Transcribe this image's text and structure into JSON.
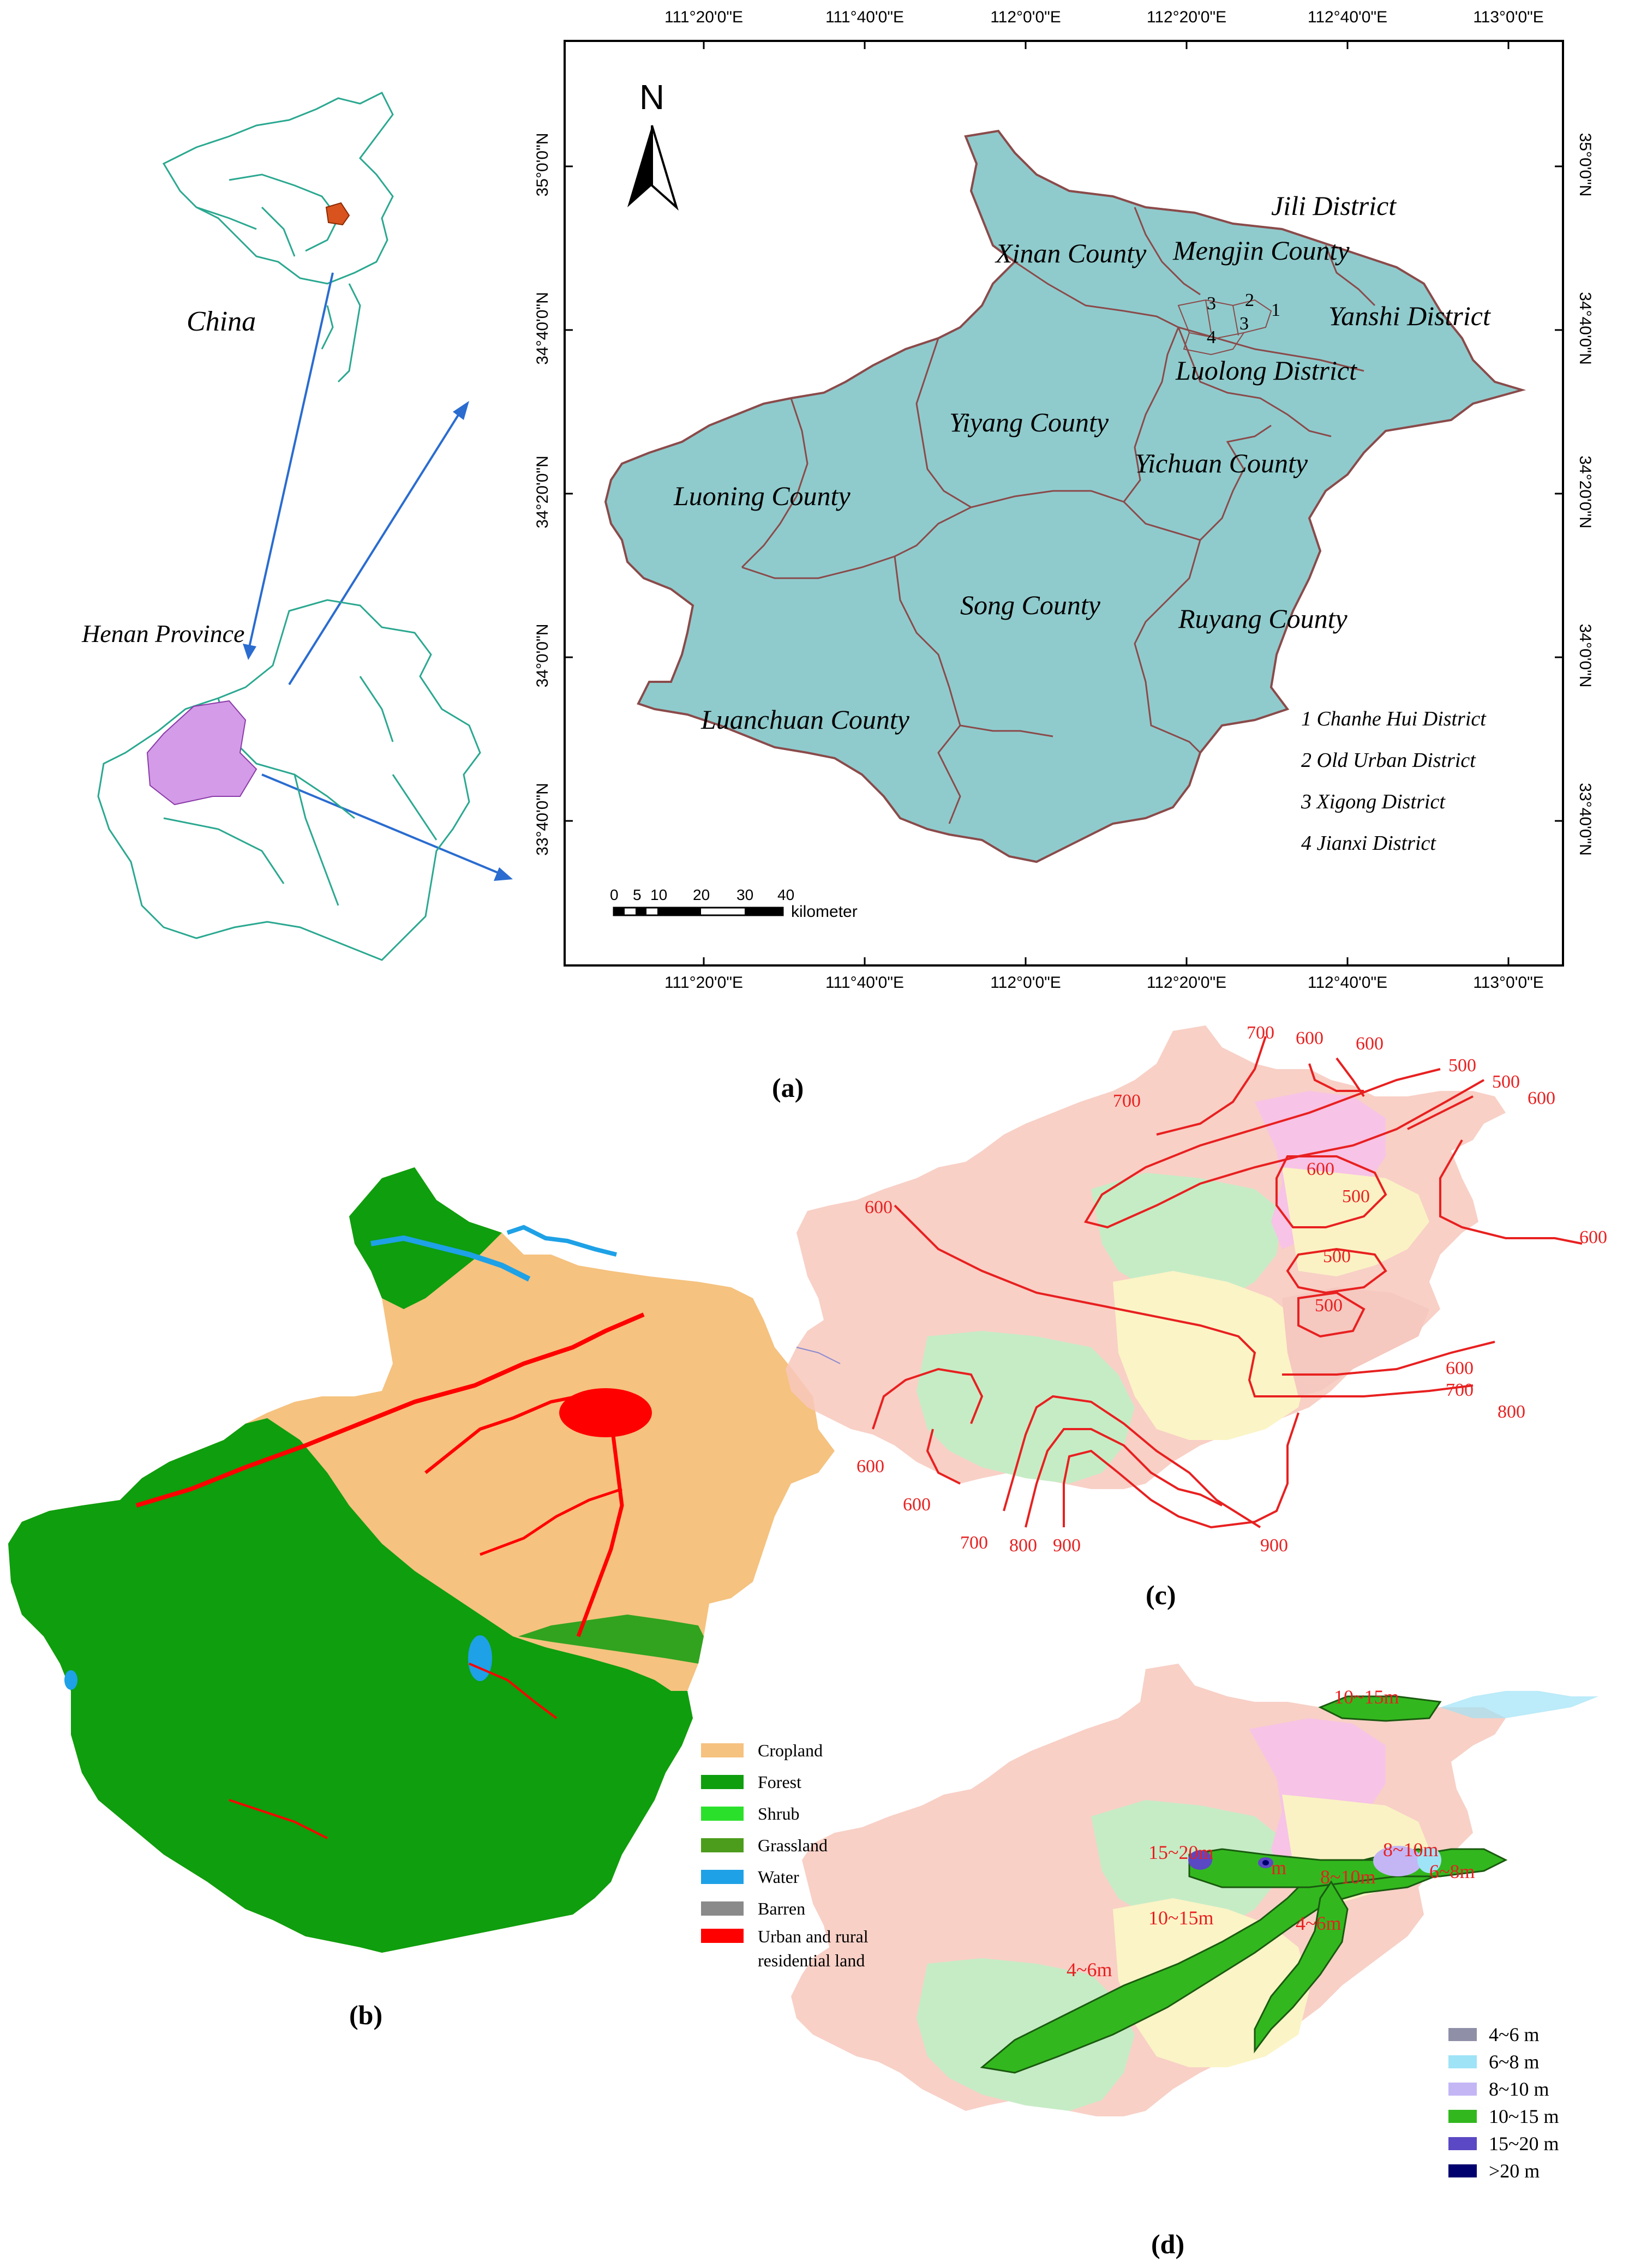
{
  "panel_a": {
    "label": "(a)",
    "inset_china": "China",
    "inset_henan": "Henan Province",
    "north_arrow": "N",
    "top_lon_ticks": [
      "111°20'0\"E",
      "111°40'0\"E",
      "112°0'0\"E",
      "112°20'0\"E",
      "112°40'0\"E",
      "113°0'0\"E"
    ],
    "bottom_lon_ticks": [
      "111°20'0\"E",
      "111°40'0\"E",
      "112°0'0\"E",
      "112°20'0\"E",
      "112°40'0\"E",
      "113°0'0\"E"
    ],
    "lat_ticks": [
      "35°0'0\"N",
      "34°40'0\"N",
      "34°20'0\"N",
      "34°0'0\"N",
      "33°40'0\"N"
    ],
    "counties": {
      "jili": "Jili District",
      "xinan": "Xinan County",
      "mengjin": "Mengjin County",
      "yanshi": "Yanshi District",
      "luolong": "Luolong District",
      "yiyang": "Yiyang County",
      "yichuan": "Yichuan County",
      "luoning": "Luoning County",
      "song": "Song County",
      "ruyang": "Ruyang County",
      "luanchuan": "Luanchuan County"
    },
    "small_numbers": [
      "3",
      "2",
      "1",
      "4",
      "3"
    ],
    "district_key": [
      "1 Chanhe Hui District",
      "2 Old Urban District",
      "3 Xigong District",
      "4 Jianxi District"
    ],
    "scale_ticks": [
      "0",
      "5",
      "10",
      "20",
      "30",
      "40"
    ],
    "scale_unit": "kilometer",
    "colors": {
      "county_fill": "#8fcbcd",
      "county_border": "#8b4a4a",
      "henan_highlight": "#d49be8",
      "china_highlight": "#d9531e"
    }
  },
  "panel_b": {
    "label": "(b)",
    "legend": [
      {
        "name": "Cropland",
        "color": "#f5c27f"
      },
      {
        "name": "Forest",
        "color": "#0e9e0e"
      },
      {
        "name": "Shrub",
        "color": "#2be02b"
      },
      {
        "name": "Grassland",
        "color": "#4c9d1c"
      },
      {
        "name": "Water",
        "color": "#1ea1e6"
      },
      {
        "name": "Barren",
        "color": "#8a8a8a"
      },
      {
        "name": "Urban and rural residential land",
        "color": "#ff0000"
      }
    ]
  },
  "panel_c": {
    "label": "(c)",
    "contour_labels": [
      "700",
      "600",
      "600",
      "500",
      "500",
      "600",
      "700",
      "600",
      "600",
      "500",
      "600",
      "500",
      "500",
      "600",
      "700",
      "800",
      "600",
      "600",
      "700",
      "800",
      "900",
      "900"
    ]
  },
  "panel_d": {
    "label": "(d)",
    "zone_labels": [
      "10~15m",
      "15~20m",
      "8~10m",
      "6~8m",
      "8~10m",
      "10~15m",
      "4~6m",
      "4~6m",
      "m"
    ],
    "legend": [
      {
        "name": "4~6 m",
        "color": "#8f8fa8"
      },
      {
        "name": "6~8 m",
        "color": "#9fe3f7"
      },
      {
        "name": "8~10 m",
        "color": "#c4b6f5"
      },
      {
        "name": "10~15 m",
        "color": "#32b81e"
      },
      {
        "name": "15~20 m",
        "color": "#5a48c4"
      },
      {
        "name": ">20 m",
        "color": "#00006e"
      }
    ]
  }
}
